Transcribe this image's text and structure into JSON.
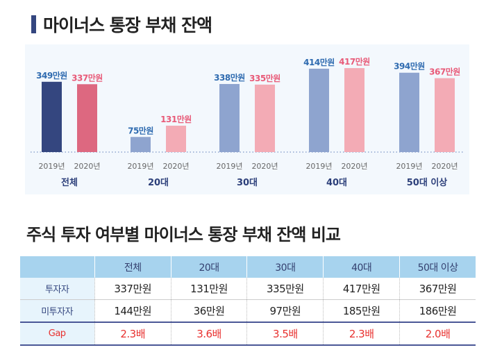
{
  "title": "마이너스 통장 부채 잔액",
  "chart_data": {
    "type": "bar",
    "title": "마이너스 통장 부채 잔액",
    "categories": [
      "전체",
      "20대",
      "30대",
      "40대",
      "50대 이상"
    ],
    "years": [
      "2019년",
      "2020년"
    ],
    "series": [
      {
        "name": "2019년",
        "values": [
          349,
          75,
          338,
          414,
          394
        ],
        "labels": [
          "349만원",
          "75만원",
          "338만원",
          "414만원",
          "394만원"
        ]
      },
      {
        "name": "2020년",
        "values": [
          337,
          131,
          335,
          417,
          367
        ],
        "labels": [
          "337만원",
          "131만원",
          "335만원",
          "417만원",
          "367만원"
        ]
      }
    ],
    "unit": "만원",
    "grid": false,
    "colors": {
      "2019_total": "#34467f",
      "2020_total": "#dd6880",
      "2019": "#8ea4cf",
      "2020": "#f3abb5",
      "label_2019": "#2f6bb0",
      "label_2020": "#e85a78",
      "group_label": "#2c3f7a"
    }
  },
  "table": {
    "title": "주식 투자 여부별 마이너스 통장 부채 잔액 비교",
    "headers": [
      "",
      "전체",
      "20대",
      "30대",
      "40대",
      "50대 이상"
    ],
    "rows": [
      [
        "투자자",
        "337만원",
        "131만원",
        "335만원",
        "417만원",
        "367만원"
      ],
      [
        "미투자자",
        "144만원",
        "36만원",
        "97만원",
        "185만원",
        "186만원"
      ],
      [
        "Gap",
        "2.3배",
        "3.6배",
        "3.5배",
        "2.3배",
        "2.0배"
      ]
    ]
  }
}
